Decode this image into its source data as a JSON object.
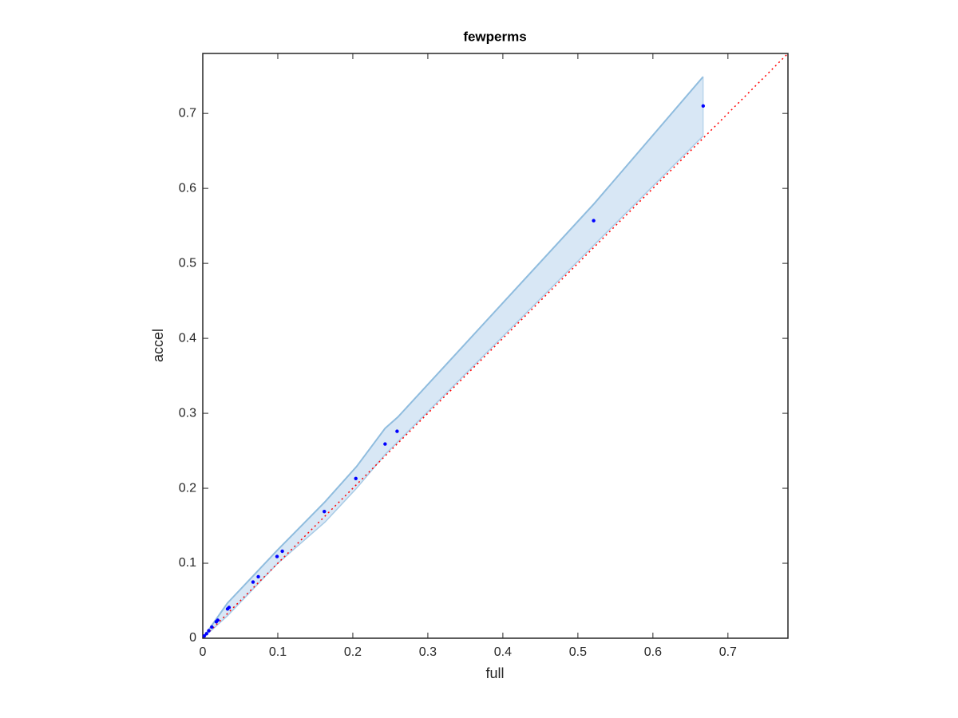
{
  "chart_data": {
    "type": "scatter",
    "title": "fewperms",
    "x_label": "full",
    "y_label": "accel",
    "xlim": [
      0,
      0.78
    ],
    "ylim": [
      0,
      0.78
    ],
    "xticks": [
      0,
      0.1,
      0.2,
      0.3,
      0.4,
      0.5,
      0.6,
      0.7
    ],
    "yticks": [
      0,
      0.1,
      0.2,
      0.3,
      0.4,
      0.5,
      0.6,
      0.7
    ],
    "series": [
      {
        "color": "#0000ff",
        "x": [
          0.667,
          0.521,
          0.259,
          0.243,
          0.204,
          0.162,
          0.106,
          0.099,
          0.074,
          0.067,
          0.035,
          0.033,
          0.02,
          0.018,
          0.012,
          0.008,
          0.005,
          0.002
        ],
        "values": [
          0.71,
          0.557,
          0.276,
          0.259,
          0.213,
          0.169,
          0.116,
          0.109,
          0.082,
          0.075,
          0.041,
          0.039,
          0.024,
          0.022,
          0.015,
          0.01,
          0.006,
          0.003
        ]
      }
    ],
    "band": {
      "fill": "#d8e7f5",
      "upper_color": "#8fbcde",
      "lower_color": "#a9cbe6",
      "x": [
        0,
        0.033,
        0.1,
        0.163,
        0.205,
        0.243,
        0.26,
        0.522,
        0.667
      ],
      "upper": [
        0,
        0.047,
        0.118,
        0.182,
        0.229,
        0.28,
        0.295,
        0.58,
        0.749
      ],
      "lower": [
        0,
        0.03,
        0.1,
        0.155,
        0.2,
        0.245,
        0.262,
        0.525,
        0.67
      ]
    },
    "reference_line": {
      "color": "#ff0000",
      "x": [
        0,
        0.78
      ],
      "y": [
        0,
        0.78
      ]
    }
  }
}
